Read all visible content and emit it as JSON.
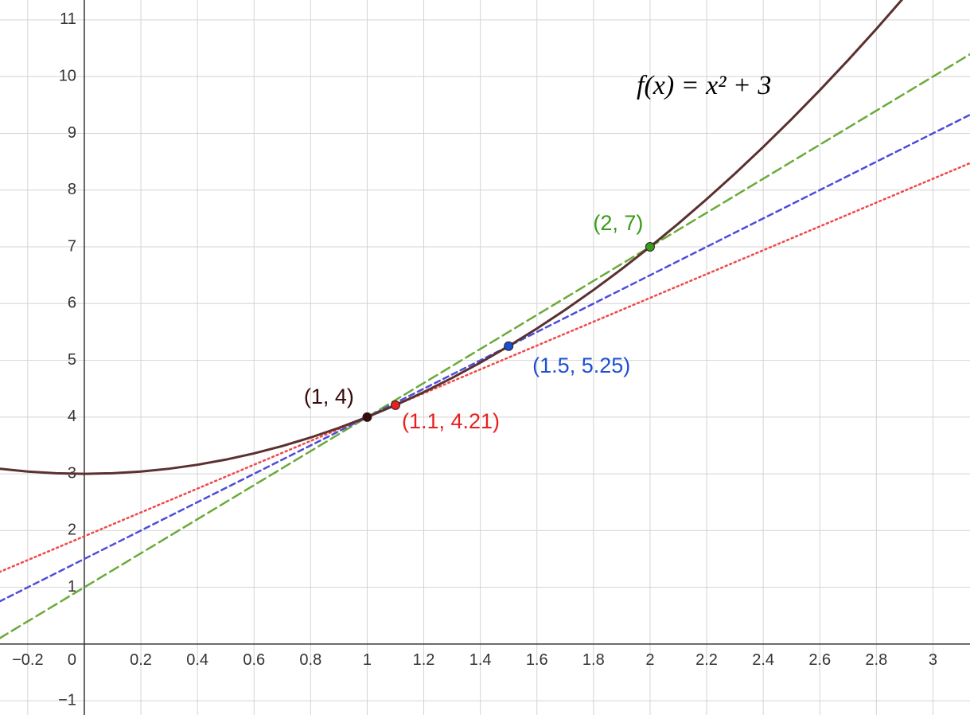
{
  "chart_data": {
    "type": "line",
    "annotation": "f(x) = x² + 3",
    "xlim": [
      -0.298,
      3.131
    ],
    "ylim": [
      -1.25,
      11.35
    ],
    "xticks": [
      {
        "value": -0.2,
        "label": "−0.2"
      },
      0,
      0.2,
      0.4,
      0.6,
      0.8,
      1,
      1.2,
      1.4,
      1.6,
      1.8,
      2,
      2.2,
      2.4,
      2.6,
      2.8,
      3
    ],
    "yticks": [
      {
        "value": -1,
        "label": "−1"
      },
      1,
      2,
      3,
      4,
      5,
      6,
      7,
      8,
      9,
      10,
      11
    ],
    "grid": true,
    "series": [
      {
        "color": "#6aaa3a",
        "dash": "12 6",
        "x": [
          -0.3,
          3.15
        ],
        "values": [
          0.1,
          10.45
        ]
      },
      {
        "color": "#4d4dd8",
        "dash": "7 5",
        "x": [
          -0.3,
          3.15
        ],
        "values": [
          0.75,
          9.375
        ]
      },
      {
        "color": "#f04848",
        "dash": "2 4",
        "x": [
          -0.3,
          3.15
        ],
        "values": [
          1.27,
          8.515
        ]
      },
      {
        "color": "#5a3030",
        "dash": "none",
        "x": [
          -0.3,
          -0.2,
          -0.1,
          0,
          0.1,
          0.2,
          0.3,
          0.4,
          0.5,
          0.6,
          0.7,
          0.8,
          0.9,
          1,
          1.1,
          1.2,
          1.3,
          1.4,
          1.5,
          1.6,
          1.7,
          1.8,
          1.9,
          2,
          2.1,
          2.2,
          2.3,
          2.4,
          2.5,
          2.6,
          2.7,
          2.8,
          2.9
        ],
        "values": [
          3.09,
          3.04,
          3.01,
          3,
          3.01,
          3.04,
          3.09,
          3.16,
          3.25,
          3.36,
          3.49,
          3.64,
          3.81,
          4,
          4.21,
          4.44,
          4.69,
          4.96,
          5.25,
          5.56,
          5.89,
          6.24,
          6.61,
          7,
          7.41,
          7.84,
          8.29,
          8.76,
          9.25,
          9.76,
          10.29,
          10.84,
          11.41
        ]
      }
    ],
    "points": [
      {
        "x": 1,
        "y": 4,
        "label": "(1, 4)",
        "color": "#3a0a0a"
      },
      {
        "x": 1.1,
        "y": 4.21,
        "label": "(1.1, 4.21)",
        "color": "#e82020"
      },
      {
        "x": 1.5,
        "y": 5.25,
        "label": "(1.5, 5.25)",
        "color": "#1c4fd0"
      },
      {
        "x": 2,
        "y": 7,
        "label": "(2, 7)",
        "color": "#3a9a1a"
      }
    ]
  }
}
